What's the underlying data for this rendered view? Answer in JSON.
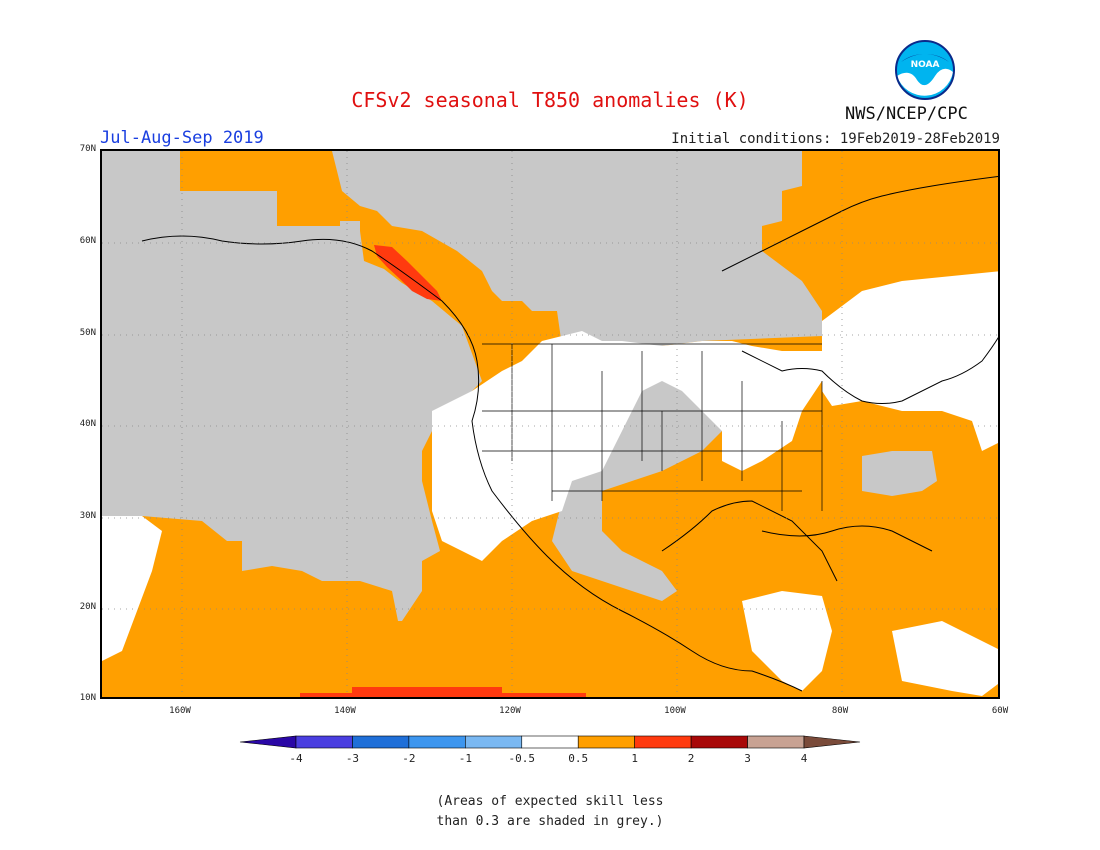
{
  "title": "CFSv2 seasonal T850 anomalies (K)",
  "season": "Jul-Aug-Sep 2019",
  "initial_conditions": "Initial conditions: 19Feb2019-28Feb2019",
  "agency": "NWS/NCEP/CPC",
  "logo_text": "NOAA",
  "lat_labels": [
    "70N",
    "60N",
    "50N",
    "40N",
    "30N",
    "20N",
    "10N"
  ],
  "lon_labels": [
    "160W",
    "140W",
    "120W",
    "100W",
    "80W",
    "60W"
  ],
  "colorbar": {
    "ticks": [
      "-4",
      "-3",
      "-2",
      "-1",
      "-0.5",
      "0.5",
      "1",
      "2",
      "3",
      "4"
    ],
    "colors": [
      "#2a07a6",
      "#4a3ee0",
      "#1f6fd8",
      "#3d96ef",
      "#7ab8f2",
      "#ffffff",
      "#ff9f00",
      "#ff3a0f",
      "#a80808",
      "#c8a293",
      "#7a4b3a"
    ]
  },
  "colors": {
    "positive_0_5_to_1": "#ff9f00",
    "positive_1_to_2": "#ff3a0f",
    "low_skill_grey": "#c8c8c8"
  },
  "note_lines": [
    "(Areas of expected skill less",
    "than 0.3 are shaded in grey.)"
  ]
}
